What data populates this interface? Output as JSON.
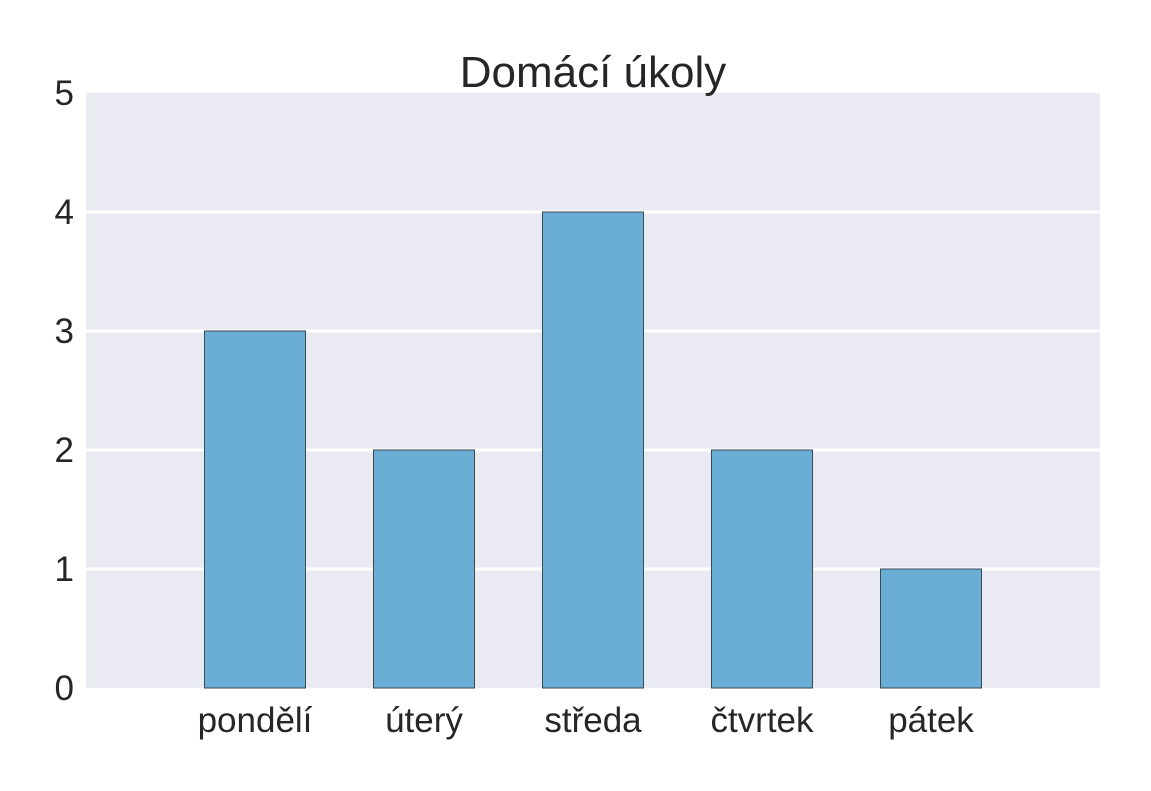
{
  "colors": {
    "background": "#ffffff",
    "plot_background": "#eaeaf2",
    "grid": "#ffffff",
    "bar_fill": "#6aadd5",
    "bar_edge": "#3a4a55",
    "text": "#262626"
  },
  "chart_data": {
    "type": "bar",
    "title": "Domácí úkoly",
    "xlabel": "",
    "ylabel": "",
    "categories": [
      "pondělí",
      "úterý",
      "středa",
      "čtvrtek",
      "pátek"
    ],
    "values": [
      3,
      2,
      4,
      2,
      1
    ],
    "ylim": [
      0,
      5
    ],
    "yticks": [
      "0",
      "1",
      "2",
      "3",
      "4",
      "5"
    ],
    "grid": true,
    "legend": "none"
  }
}
